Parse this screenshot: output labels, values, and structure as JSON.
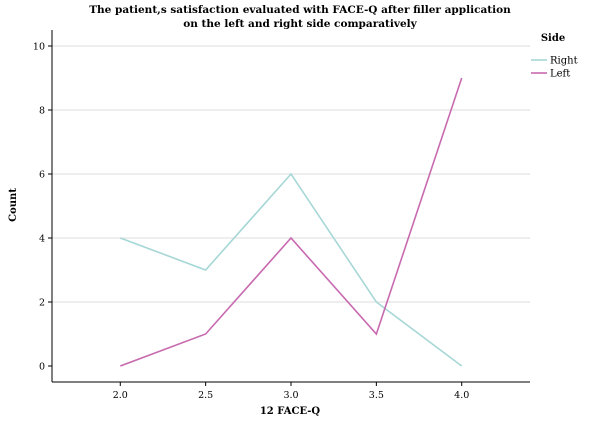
{
  "chart_data": {
    "type": "line",
    "title_line1": "The patient,s satisfaction evaluated with FACE-Q after filler application",
    "title_line2": "on the left and right side comparatively",
    "xlabel": "12 FACE-Q",
    "ylabel": "Count",
    "x": [
      2.0,
      2.5,
      3.0,
      3.5,
      4.0
    ],
    "x_tick_labels": [
      "2.0",
      "2.5",
      "3.0",
      "3.5",
      "4.0"
    ],
    "xlim": [
      1.6,
      4.4
    ],
    "ylim": [
      -0.5,
      10.5
    ],
    "y_ticks": [
      0,
      2,
      4,
      6,
      8,
      10
    ],
    "grid": true,
    "legend_title": "Side",
    "legend_placement": "right",
    "series": [
      {
        "name": "Right",
        "color": "#a6d7d6",
        "values": [
          4,
          3,
          6,
          2,
          0
        ]
      },
      {
        "name": "Left",
        "color": "#c86ab0",
        "values": [
          0,
          1,
          4,
          1,
          9
        ]
      }
    ]
  }
}
